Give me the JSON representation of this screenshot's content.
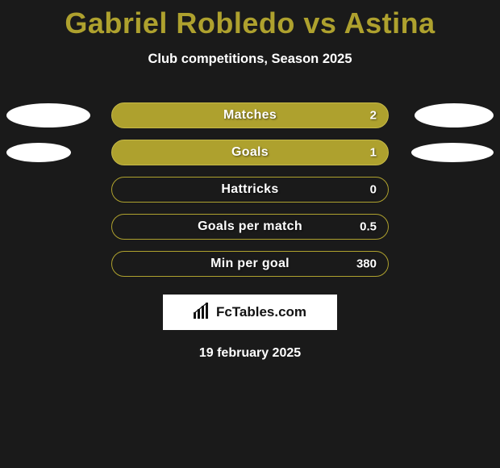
{
  "title": "Gabriel Robledo vs Astina",
  "title_color": "#aea12e",
  "subtitle": "Club competitions, Season 2025",
  "background_color": "#1a1a1a",
  "bar_fill_color": "#aea12e",
  "bar_border_color": "#c6b947",
  "bar_outline_color": "#aea12e",
  "cap_color": "#ffffff",
  "text_color": "#ffffff",
  "stats": [
    {
      "label": "Matches",
      "value": "2",
      "filled": true,
      "left_cap_w": 104,
      "left_cap_h": 30,
      "right_cap_w": 98,
      "right_cap_h": 30
    },
    {
      "label": "Goals",
      "value": "1",
      "filled": true,
      "left_cap_w": 80,
      "left_cap_h": 24,
      "right_cap_w": 102,
      "right_cap_h": 24
    },
    {
      "label": "Hattricks",
      "value": "0",
      "filled": false,
      "left_cap_w": 0,
      "left_cap_h": 0,
      "right_cap_w": 0,
      "right_cap_h": 0
    },
    {
      "label": "Goals per match",
      "value": "0.5",
      "filled": false,
      "left_cap_w": 0,
      "left_cap_h": 0,
      "right_cap_w": 0,
      "right_cap_h": 0
    },
    {
      "label": "Min per goal",
      "value": "380",
      "filled": false,
      "left_cap_w": 0,
      "left_cap_h": 0,
      "right_cap_w": 0,
      "right_cap_h": 0
    }
  ],
  "brand": {
    "text": "FcTables.com"
  },
  "footer_date": "19 february 2025"
}
